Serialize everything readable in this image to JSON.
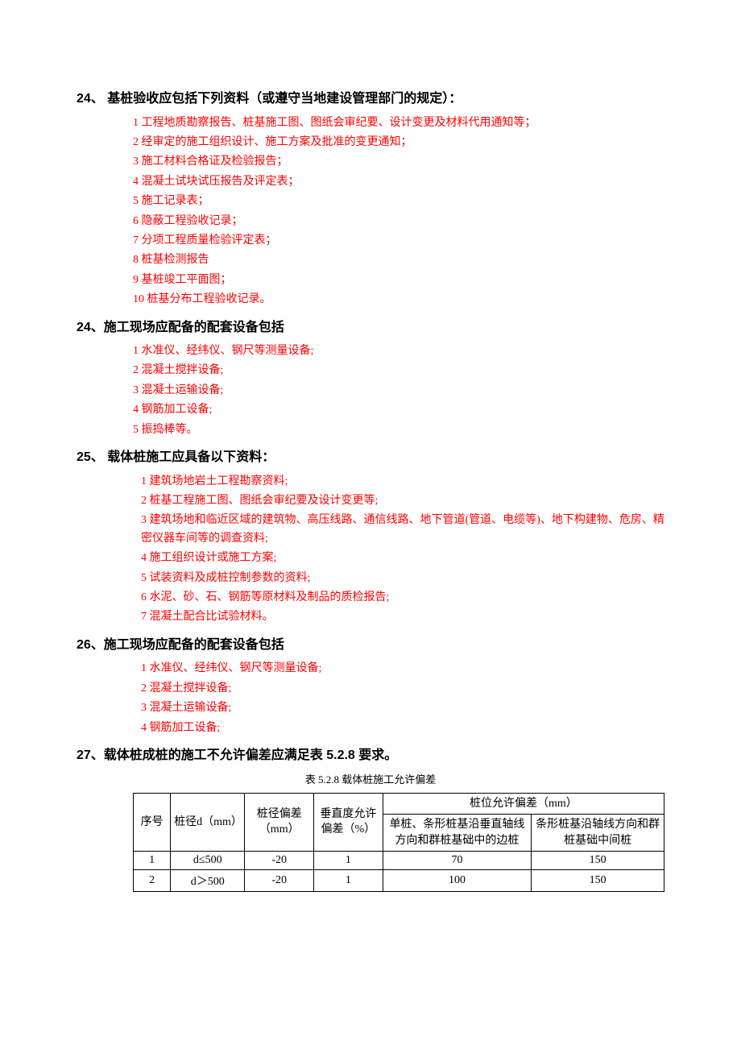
{
  "sections": [
    {
      "title": "24、 基桩验收应包括下列资料（或遵守当地建设管理部门的规定）：",
      "listClass": "red-list",
      "items": [
        "1 工程地质勘察报告、桩基施工图、图纸会审纪要、设计变更及材料代用通知等；",
        "2 经审定的施工组织设计、施工方案及批准的变更通知；",
        "3 施工材料合格证及检验报告；",
        "4 混凝土试块试压报告及评定表；",
        "5 施工记录表；",
        "6 隐蔽工程验收记录；",
        "7 分项工程质量检验评定表；",
        "8 桩基检测报告",
        "9 基桩竣工平面图；",
        "10 桩基分布工程验收记录。"
      ]
    },
    {
      "title": "24、施工现场应配备的配套设备包括",
      "listClass": "red-list",
      "items": [
        "1 水准仪、经纬仪、钢尺等测量设备;",
        "2 混凝土搅拌设备;",
        "3 混凝土运输设备;",
        "4 钢筋加工设备;",
        "5  振捣棒等。"
      ]
    },
    {
      "title": "25、 载体桩施工应具备以下资料：",
      "listClass": "red-list-alt",
      "items": [
        "1  建筑场地岩土工程勘察资料;",
        "2  桩基工程施工图、图纸会审纪要及设计变更等;",
        "3 建筑场地和临近区域的建筑物、高压线路、通信线路、地下管道(管道、电缆等)、地下构建物、危房、精密仪器车间等的调查资料;",
        "4  施工组织设计或施工方案;",
        "5  试装资料及成桩控制参数的资料;",
        "6  水泥、砂、石、钢筋等原材料及制品的质检报告;",
        "7  混凝土配合比试验材料。"
      ]
    },
    {
      "title": "26、施工现场应配备的配套设备包括",
      "listClass": "red-list-alt",
      "items": [
        "1 水准仪、经纬仪、钢尺等测量设备;",
        "2 混凝土搅拌设备;",
        "3 混凝土运输设备;",
        "4 钢筋加工设备;"
      ]
    }
  ],
  "section27": {
    "title": "27、载体桩成桩的施工不允许偏差应满足表 5.2.8 要求。",
    "caption": "表 5.2.8 载体桩施工允许偏差"
  },
  "table": {
    "headers": {
      "seq": "序号",
      "diameter": "桩径d（mm）",
      "diamDev": "桩径偏差（mm）",
      "vertDev": "垂直度允许偏差（%）",
      "posGroup": "桩位允许偏差（mm）",
      "pos1": "单桩、条形桩基沿垂直轴线方向和群桩基础中的边桩",
      "pos2": "条形桩基沿轴线方向和群桩基础中间桩"
    },
    "rows": [
      {
        "seq": "1",
        "diameter": "d≤500",
        "diamDev": "-20",
        "vertDev": "1",
        "pos1": "70",
        "pos2": "150"
      },
      {
        "seq": "2",
        "diameter": "d＞500",
        "diamDev": "-20",
        "vertDev": "1",
        "pos1": "100",
        "pos2": "150"
      }
    ]
  }
}
